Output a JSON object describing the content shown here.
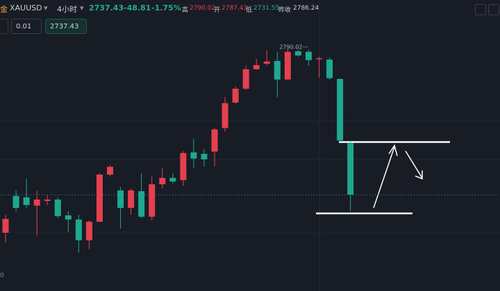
{
  "header": {
    "symbol_prefix": "金",
    "symbol": "XAUUSD",
    "interval": "4小时",
    "change": "-48.81",
    "change_pct": "-1.75%",
    "high_label": "高",
    "open_label": "开",
    "open_value": "2787.43",
    "low_label": "低",
    "prev_close_label": "昨收",
    "prev_close_value": "2786.24",
    "lot_input": "0.01",
    "corner_label": "0"
  },
  "chart_data": {
    "type": "candlestick",
    "last_price": 2737.43,
    "up_color": "#e5404f",
    "down_color": "#1fa88f",
    "ylim": [
      2702.7,
      2807.7
    ],
    "open": [
      2723.7,
      2737.0,
      2736.5,
      2733.5,
      2735.2,
      2735.7,
      2730.0,
      2728.5,
      2721.0,
      2727.7,
      2744.7,
      2739.0,
      2732.7,
      2738.7,
      2729.5,
      2741.2,
      2743.5,
      2742.7,
      2752.7,
      2752.2,
      2753.0,
      2761.5,
      2770.7,
      2775.7,
      2782.7,
      2784.7,
      2785.7,
      2779.0,
      2789.2,
      2789.0,
      2786.5,
      2786.2,
      2779.2,
      2756.2
    ],
    "high": [
      2730.2,
      2739.0,
      2743.2,
      2739.0,
      2737.2,
      2736.5,
      2731.5,
      2730.2,
      2728.2,
      2745.2,
      2748.2,
      2740.2,
      2739.7,
      2745.2,
      2744.0,
      2747.0,
      2745.2,
      2753.2,
      2757.7,
      2754.0,
      2761.5,
      2772.7,
      2776.5,
      2784.0,
      2786.5,
      2789.5,
      2789.0,
      2790.02,
      2789.7,
      2789.8,
      2787.2,
      2787.0,
      2779.5,
      2756.5
    ],
    "low": [
      2720.2,
      2731.5,
      2732.7,
      2722.7,
      2733.7,
      2729.0,
      2724.0,
      2716.5,
      2717.7,
      2727.5,
      2744.0,
      2725.2,
      2730.2,
      2729.0,
      2728.2,
      2739.7,
      2741.5,
      2740.7,
      2747.2,
      2747.7,
      2747.7,
      2760.2,
      2770.2,
      2775.2,
      2782.5,
      2784.0,
      2772.7,
      2779.0,
      2787.2,
      2784.0,
      2779.7,
      2779.0,
      2756.5,
      2731.55
    ],
    "close": [
      2728.7,
      2732.7,
      2733.7,
      2735.7,
      2735.7,
      2729.7,
      2728.5,
      2721.0,
      2727.7,
      2744.7,
      2747.5,
      2732.7,
      2739.0,
      2729.5,
      2741.2,
      2743.5,
      2742.2,
      2752.5,
      2750.5,
      2750.2,
      2761.0,
      2770.5,
      2775.7,
      2782.7,
      2784.2,
      2785.5,
      2779.0,
      2789.0,
      2787.7,
      2786.0,
      2786.7,
      2779.5,
      2757.0,
      2737.43
    ]
  }
}
